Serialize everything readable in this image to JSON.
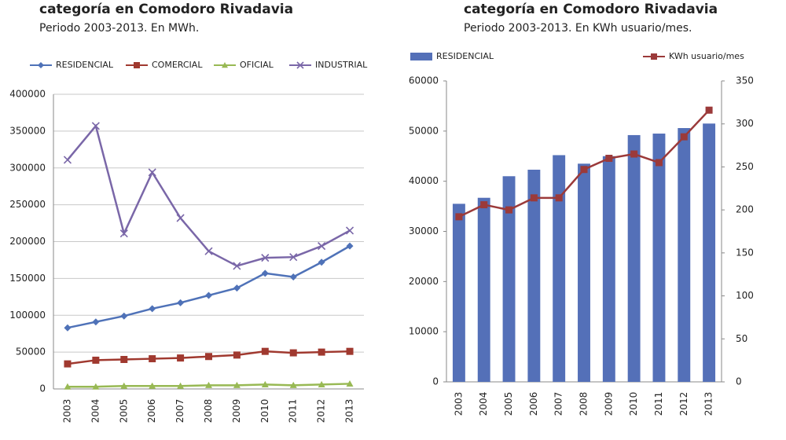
{
  "chart_data": [
    {
      "type": "line",
      "title": "categoría en Comodoro Rivadavia",
      "subtitle": "Periodo 2003-2013. En MWh.",
      "categories": [
        "2003",
        "2004",
        "2005",
        "2006",
        "2007",
        "2008",
        "2009",
        "2010",
        "2011",
        "2012",
        "2013"
      ],
      "series": [
        {
          "name": "RESIDENCIAL",
          "color": "#4f72b8",
          "marker": "diamond",
          "values": [
            83000,
            91000,
            99000,
            109000,
            117000,
            127000,
            137000,
            157000,
            152000,
            172000,
            194000
          ]
        },
        {
          "name": "COMERCIAL",
          "color": "#a0392f",
          "marker": "square",
          "values": [
            34000,
            39000,
            40000,
            41000,
            42000,
            44000,
            46000,
            51000,
            49000,
            50000,
            51000
          ]
        },
        {
          "name": "OFICIAL",
          "color": "#98b954",
          "marker": "triangle",
          "values": [
            3000,
            3000,
            4000,
            4000,
            4000,
            5000,
            5000,
            6000,
            5000,
            6000,
            7000
          ]
        },
        {
          "name": "INDUSTRIAL",
          "color": "#7a67a8",
          "marker": "x",
          "values": [
            311000,
            357000,
            211000,
            294000,
            232000,
            187000,
            167000,
            178000,
            179000,
            194000,
            215000
          ]
        }
      ],
      "ylim": [
        0,
        400000
      ],
      "yticks": [
        0,
        50000,
        100000,
        150000,
        200000,
        250000,
        300000,
        350000,
        400000
      ],
      "grid": true
    },
    {
      "type": "bar",
      "title": "categoría en Comodoro Rivadavia",
      "subtitle": "Periodo 2003-2013. En KWh usuario/mes.",
      "categories": [
        "2003",
        "2004",
        "2005",
        "2006",
        "2007",
        "2008",
        "2009",
        "2010",
        "2011",
        "2012",
        "2013"
      ],
      "series": [
        {
          "name": "RESIDENCIAL",
          "color": "#5470b8",
          "values": [
            35500,
            36700,
            41000,
            42300,
            45200,
            43500,
            45000,
            49200,
            49500,
            50600,
            51500
          ]
        },
        {
          "name": "KWh usuario/mes",
          "color": "#9b3a3a",
          "type": "line",
          "marker": "square",
          "axis": "y2",
          "values": [
            192,
            206,
            200,
            214,
            214,
            247,
            260,
            265,
            255,
            285,
            316
          ]
        }
      ],
      "ylim": [
        0,
        60000
      ],
      "yticks": [
        0,
        10000,
        20000,
        30000,
        40000,
        50000,
        60000
      ],
      "y2lim": [
        0,
        350
      ],
      "y2ticks": [
        0,
        50,
        100,
        150,
        200,
        250,
        300,
        350
      ],
      "grid": false
    }
  ]
}
